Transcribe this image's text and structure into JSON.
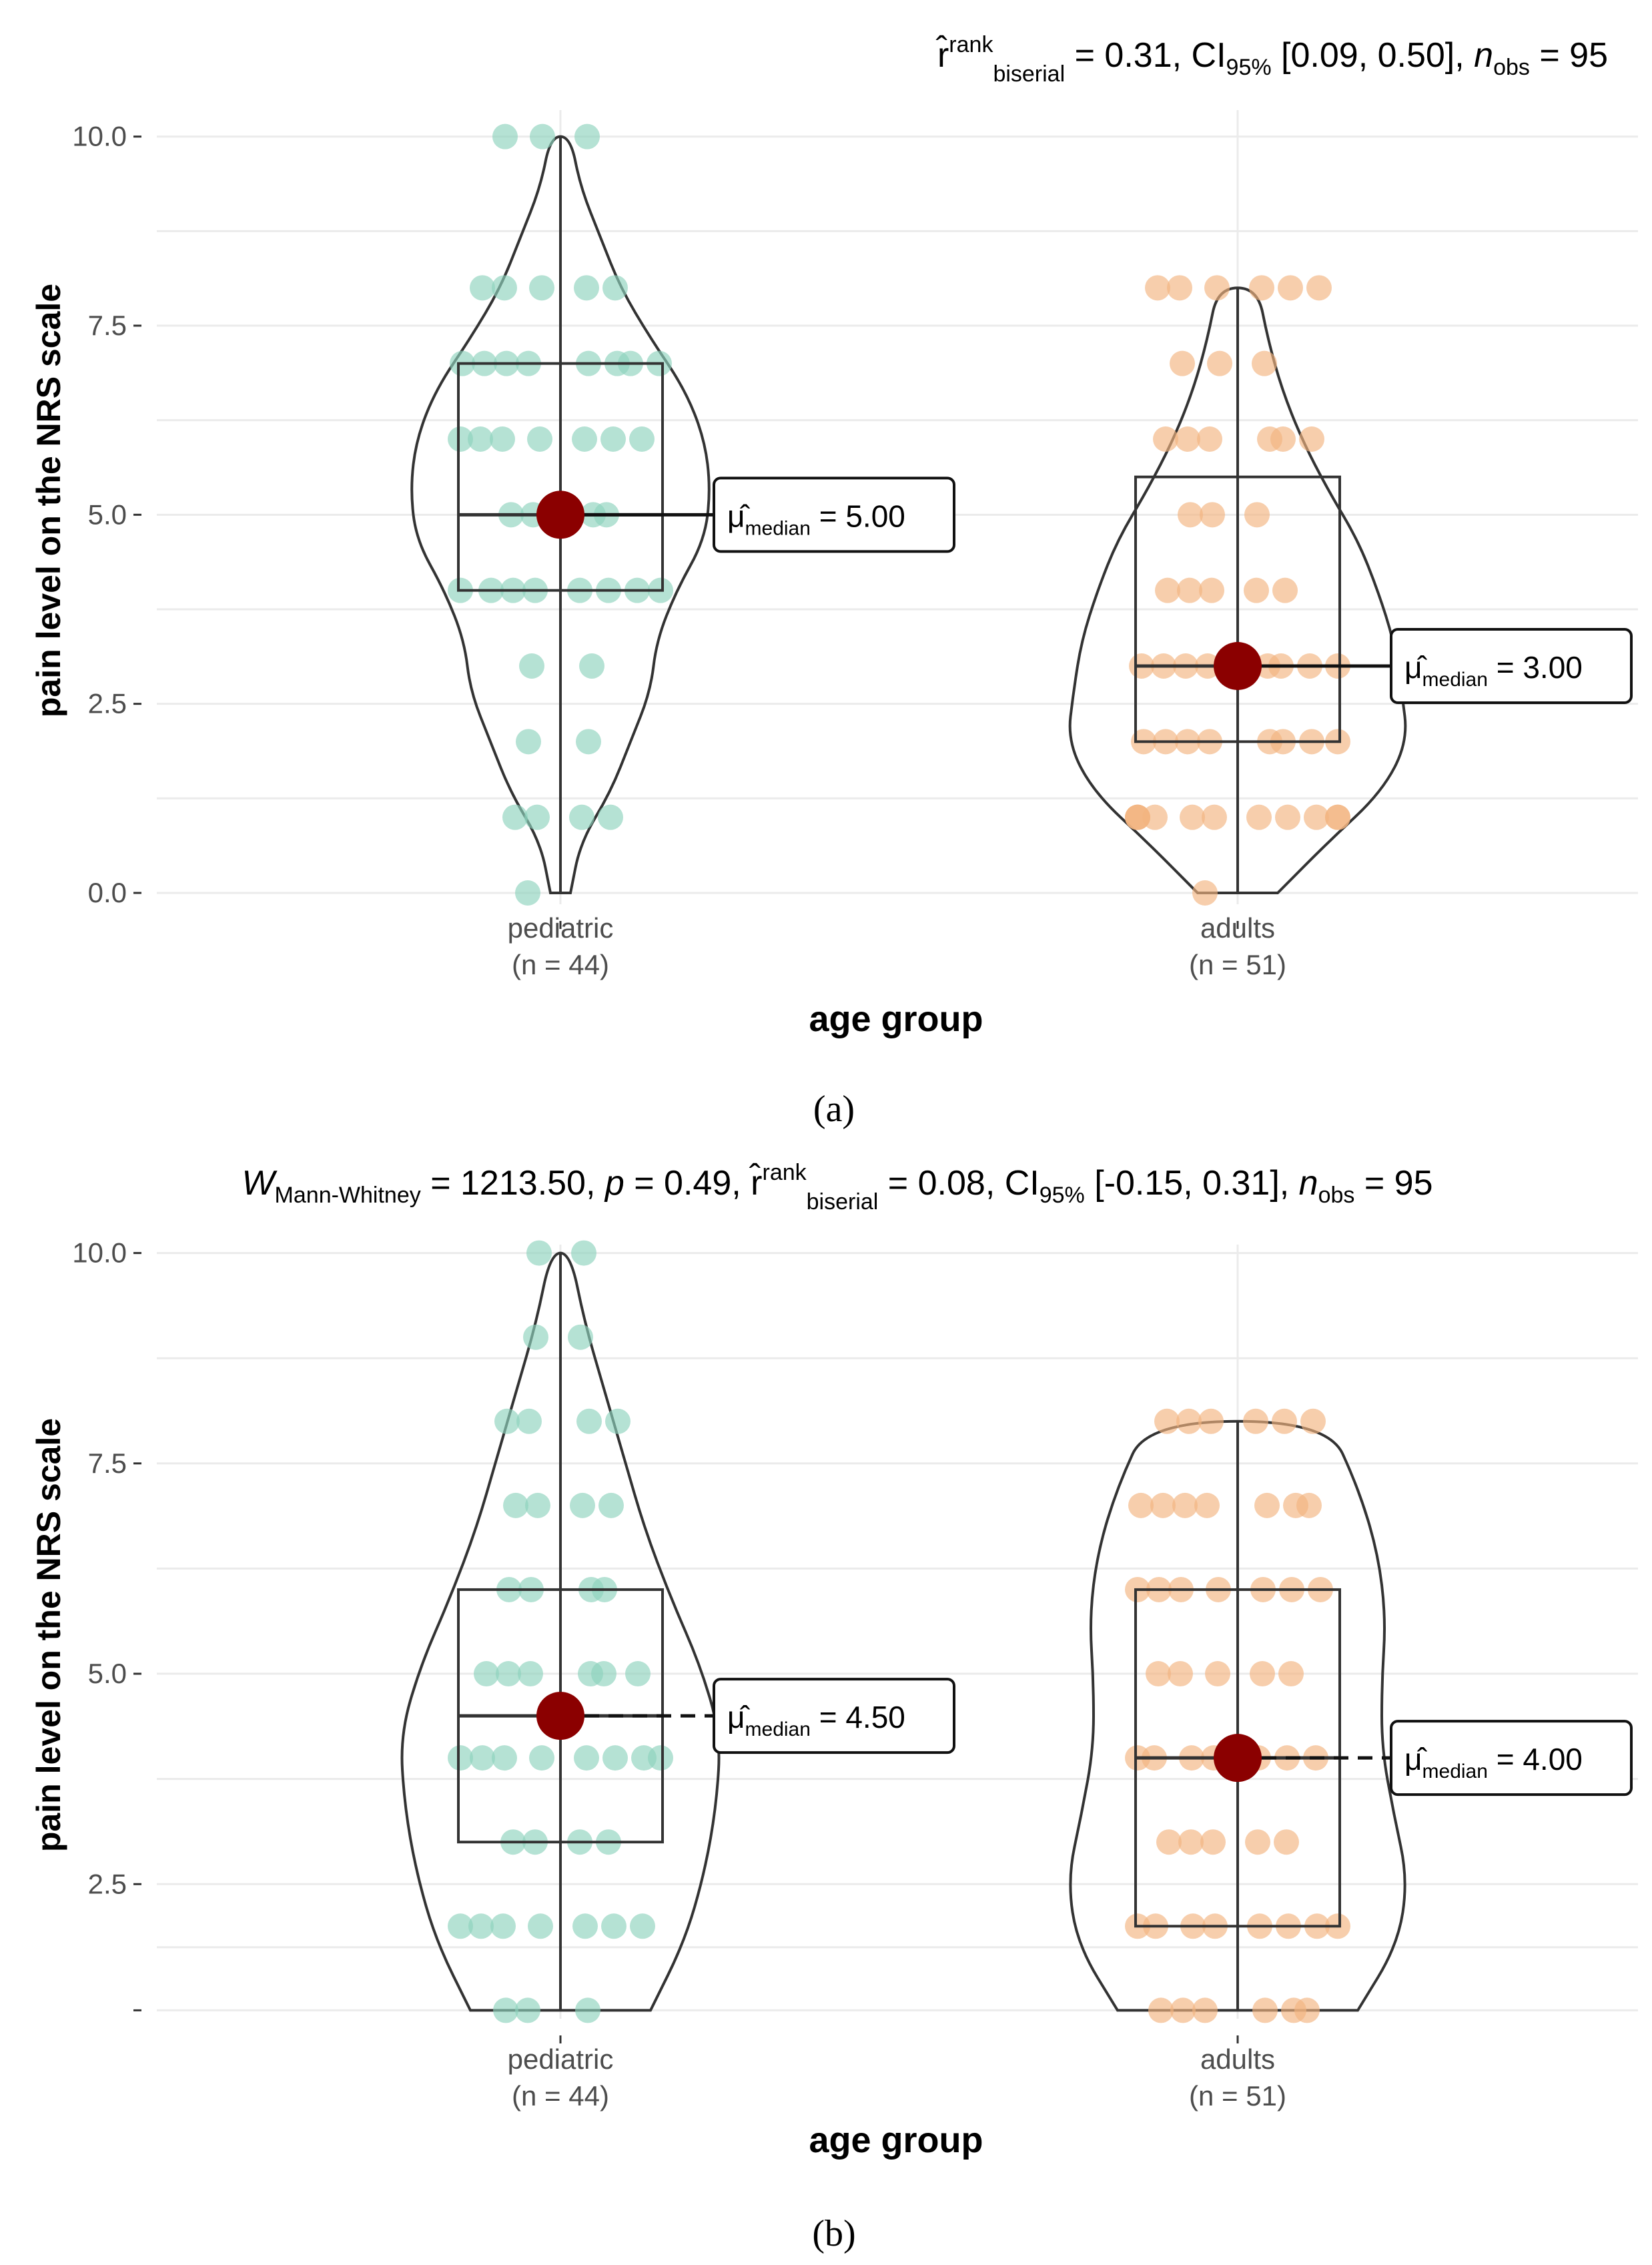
{
  "colors": {
    "pediatric": "#8ed3bd",
    "adults": "#f3b37f",
    "median_point": "#8b0000",
    "outline": "#333333",
    "grid": "#ebebeb"
  },
  "chart_data": [
    {
      "id": "a",
      "type": "violin_box_jitter",
      "panel_label": "(a)",
      "subtitle": {
        "stat_symbol": "",
        "stat_subscript": "",
        "stat_value": "",
        "effect_hat": "r̂",
        "effect_sup": "rank",
        "effect_sub": "biserial",
        "effect_value": " = 0.31, CI",
        "ci_sub": "95%",
        "ci_value": " [0.09, 0.50], ",
        "n_symbol": "n",
        "n_sub": "obs",
        "n_value": " = 95"
      },
      "ylabel": "pain level on the NRS scale",
      "xlabel": "age group",
      "ylim": [
        -0.15,
        10.35
      ],
      "yticks": [
        0,
        2.5,
        5,
        7.5,
        10
      ],
      "ytick_labels": [
        "0.0",
        "2.5",
        "5.0",
        "7.5",
        "10.0"
      ],
      "groups": [
        {
          "name": "pediatric",
          "n_label": "(n = 44)",
          "min": 0,
          "q1": 4,
          "median": 5,
          "q3": 7,
          "max": 10,
          "violin_min": 0,
          "violin_max": 10,
          "violin_widths": [
            0.05,
            0.1,
            0.25,
            0.35,
            0.45,
            0.48,
            0.58,
            0.72,
            0.75,
            0.72,
            0.62,
            0.45,
            0.3,
            0.2,
            0.1,
            0.05
          ],
          "median_label_mu": "μ̂",
          "median_label_sub": "median",
          "median_label_value": " = 5.00",
          "median_line_dashed": false,
          "points": [
            0,
            1,
            1,
            1,
            1,
            2,
            2,
            3,
            3,
            4,
            4,
            4,
            4,
            4,
            4,
            4,
            4,
            5,
            5,
            5,
            5,
            6,
            6,
            6,
            6,
            6,
            6,
            6,
            7,
            7,
            7,
            7,
            7,
            7,
            7,
            7,
            8,
            8,
            8,
            8,
            8,
            10,
            10,
            10
          ]
        },
        {
          "name": "adults",
          "n_label": "(n = 51)",
          "min": 0,
          "q1": 2,
          "median": 3,
          "q3": 5.5,
          "max": 8,
          "violin_min": 0,
          "violin_max": 8,
          "violin_widths": [
            0.2,
            0.45,
            0.72,
            0.85,
            0.82,
            0.78,
            0.7,
            0.6,
            0.45,
            0.32,
            0.22,
            0.15,
            0.1
          ],
          "median_label_mu": "μ̂",
          "median_label_sub": "median",
          "median_label_value": " = 3.00",
          "median_line_dashed": false,
          "points": [
            0,
            1,
            1,
            1,
            1,
            1,
            1,
            1,
            1,
            1,
            1,
            1,
            2,
            2,
            2,
            2,
            2,
            2,
            2,
            2,
            3,
            3,
            3,
            3,
            3,
            3,
            3,
            4,
            4,
            4,
            4,
            4,
            5,
            5,
            5,
            6,
            6,
            6,
            6,
            6,
            6,
            7,
            7,
            7,
            8,
            8,
            8,
            8,
            8,
            8,
            3
          ]
        }
      ]
    },
    {
      "id": "b",
      "type": "violin_box_jitter",
      "panel_label": "(b)",
      "subtitle": {
        "stat_symbol": "W",
        "stat_subscript": "Mann-Whitney",
        "stat_value": " = 1213.50, ",
        "p_symbol": "p",
        "p_value": " = 0.49, ",
        "effect_hat": "r̂",
        "effect_sup": "rank",
        "effect_sub": "biserial",
        "effect_value": " = 0.08, CI",
        "ci_sub": "95%",
        "ci_value": " [-0.15, 0.31], ",
        "n_symbol": "n",
        "n_sub": "obs",
        "n_value": " = 95"
      },
      "ylabel": "pain level on the NRS scale",
      "xlabel": "age group",
      "ylim": [
        0.9,
        10.1
      ],
      "yticks": [
        1,
        2.5,
        5,
        7.5,
        10
      ],
      "ytick_labels": [
        "",
        "2.5",
        "5.0",
        "7.5",
        "10.0"
      ],
      "groups": [
        {
          "name": "pediatric",
          "n_label": "(n = 44)",
          "min": 1,
          "q1": 3,
          "median": 4.5,
          "q3": 6,
          "max": 10,
          "violin_min": 1,
          "violin_max": 10,
          "violin_widths": [
            0.45,
            0.62,
            0.72,
            0.78,
            0.8,
            0.7,
            0.55,
            0.42,
            0.32,
            0.22,
            0.12,
            0.05
          ],
          "median_label_mu": "μ̂",
          "median_label_sub": "median",
          "median_label_value": " = 4.50",
          "median_line_dashed": true,
          "points": [
            1,
            1,
            1,
            2,
            2,
            2,
            2,
            2,
            2,
            3,
            3,
            3,
            3,
            4,
            4,
            4,
            4,
            4,
            4,
            4,
            5,
            5,
            5,
            5,
            5,
            6,
            6,
            6,
            6,
            7,
            7,
            7,
            7,
            8,
            8,
            8,
            8,
            9,
            9,
            10,
            10,
            4,
            5,
            2
          ]
        },
        {
          "name": "adults",
          "n_label": "(n = 51)",
          "min": 1,
          "q1": 2,
          "median": 4,
          "q3": 6,
          "max": 8,
          "violin_min": 1,
          "violin_max": 8,
          "violin_widths": [
            0.6,
            0.8,
            0.85,
            0.78,
            0.72,
            0.72,
            0.74,
            0.7,
            0.6,
            0.45
          ],
          "median_label_mu": "μ̂",
          "median_label_sub": "median",
          "median_label_value": " = 4.00",
          "median_line_dashed": true,
          "points": [
            1,
            1,
            1,
            1,
            1,
            1,
            2,
            2,
            2,
            2,
            2,
            2,
            2,
            2,
            3,
            3,
            3,
            3,
            3,
            4,
            4,
            4,
            4,
            4,
            4,
            4,
            5,
            5,
            5,
            5,
            5,
            6,
            6,
            6,
            6,
            6,
            6,
            6,
            7,
            7,
            7,
            7,
            7,
            7,
            7,
            8,
            8,
            8,
            8,
            8,
            8
          ]
        }
      ]
    }
  ]
}
